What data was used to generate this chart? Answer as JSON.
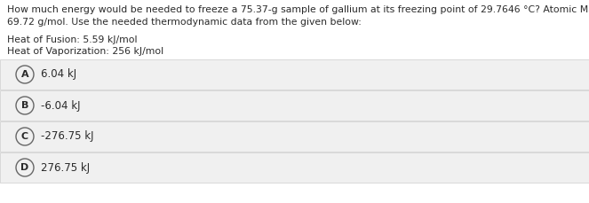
{
  "question_line1": "How much energy would be needed to freeze a 75.37-g sample of gallium at its freezing point of 29.7646 °C? Atomic Mass of Ga:",
  "question_line2": "69.72 g/mol. Use the needed thermodynamic data from the given below:",
  "data_line1": "Heat of Fusion: 5.59 kJ/mol",
  "data_line2": "Heat of Vaporization: 256 kJ/mol",
  "options": [
    {
      "label": "A",
      "text": "6.04 kJ"
    },
    {
      "label": "B",
      "text": "-6.04 kJ"
    },
    {
      "label": "C",
      "text": "-276.75 kJ"
    },
    {
      "label": "D",
      "text": "276.75 kJ"
    }
  ],
  "bg_color": "#ffffff",
  "option_bg_color": "#f0f0f0",
  "option_border_color": "#cccccc",
  "text_color": "#2a2a2a",
  "circle_edge_color": "#666666",
  "font_size_question": 7.8,
  "font_size_data": 7.8,
  "font_size_option": 8.5,
  "fig_width": 6.63,
  "fig_height": 2.29,
  "dpi": 100
}
